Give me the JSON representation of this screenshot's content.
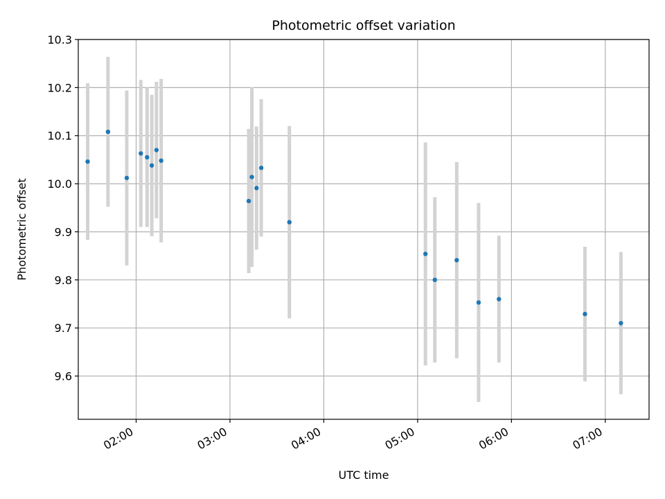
{
  "chart_data": {
    "type": "scatter",
    "title": "Photometric offset variation",
    "xlabel": "UTC time",
    "ylabel": "Photometric offset",
    "xlim": [
      "01:23",
      "07:28"
    ],
    "ylim": [
      9.51,
      10.3
    ],
    "x_ticks": [
      "02:00",
      "03:00",
      "04:00",
      "05:00",
      "06:00",
      "07:00"
    ],
    "y_ticks": [
      "9.6",
      "9.7",
      "9.8",
      "9.9",
      "10.0",
      "10.1",
      "10.2",
      "10.3"
    ],
    "grid": true,
    "legend": "none",
    "colors": {
      "points": "#1f77b4",
      "errorbars": "#d3d3d3",
      "grid": "#b0b0b0"
    },
    "points": [
      {
        "time": "01:29",
        "y": 10.046,
        "yerr": 0.163
      },
      {
        "time": "01:42",
        "y": 10.108,
        "yerr": 0.156
      },
      {
        "time": "01:54",
        "y": 10.012,
        "yerr": 0.182
      },
      {
        "time": "02:03",
        "y": 10.063,
        "yerr": 0.153
      },
      {
        "time": "02:07",
        "y": 10.055,
        "yerr": 0.145
      },
      {
        "time": "02:10",
        "y": 10.038,
        "yerr": 0.147
      },
      {
        "time": "02:13",
        "y": 10.07,
        "yerr": 0.142
      },
      {
        "time": "02:16",
        "y": 10.048,
        "yerr": 0.17
      },
      {
        "time": "03:12",
        "y": 9.964,
        "yerr": 0.15
      },
      {
        "time": "03:14",
        "y": 10.014,
        "yerr": 0.187
      },
      {
        "time": "03:17",
        "y": 9.991,
        "yerr": 0.128
      },
      {
        "time": "03:20",
        "y": 10.033,
        "yerr": 0.143
      },
      {
        "time": "03:38",
        "y": 9.92,
        "yerr": 0.2
      },
      {
        "time": "05:05",
        "y": 9.854,
        "yerr": 0.232
      },
      {
        "time": "05:11",
        "y": 9.8,
        "yerr": 0.172
      },
      {
        "time": "05:25",
        "y": 9.841,
        "yerr": 0.204
      },
      {
        "time": "05:39",
        "y": 9.753,
        "yerr": 0.207
      },
      {
        "time": "05:52",
        "y": 9.76,
        "yerr": 0.132
      },
      {
        "time": "06:47",
        "y": 9.729,
        "yerr": 0.14
      },
      {
        "time": "07:10",
        "y": 9.71,
        "yerr": 0.148
      }
    ]
  }
}
